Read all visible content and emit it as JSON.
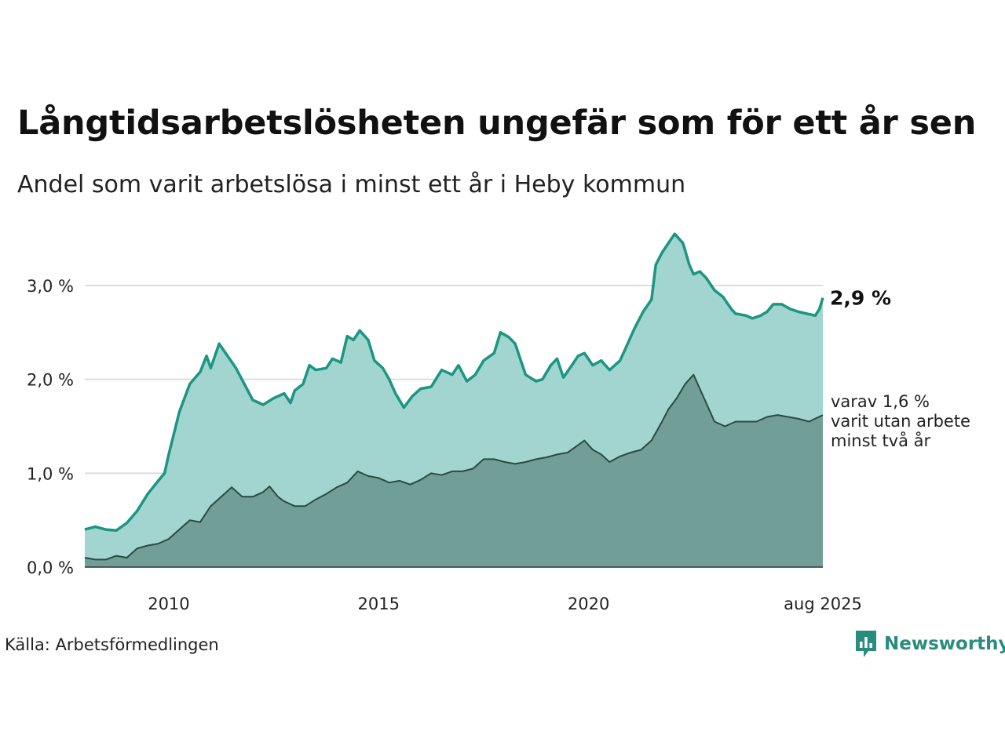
{
  "title": "Långtidsarbetslösheten ungefär som för ett år sen",
  "subtitle": "Andel som varit arbetslösa i minst ett år i Heby kommun",
  "source": "Källa: Arbetsförmedlingen",
  "brand": {
    "name": "Newsworthy",
    "color": "#2a8c7e"
  },
  "chart_data": {
    "type": "area",
    "x_unit": "year",
    "xlim": [
      2008.0,
      2025.58
    ],
    "ylim": [
      0,
      3.0
    ],
    "yticks": [
      {
        "value": 0,
        "label": "0,0 %"
      },
      {
        "value": 1,
        "label": "1,0 %"
      },
      {
        "value": 2,
        "label": "2,0 %"
      },
      {
        "value": 3,
        "label": "3,0 %"
      }
    ],
    "xticks": [
      {
        "value": 2010,
        "label": "2010"
      },
      {
        "value": 2015,
        "label": "2015"
      },
      {
        "value": 2020,
        "label": "2020"
      },
      {
        "value": 2025.58,
        "label": "aug 2025"
      }
    ],
    "grid": true,
    "colors": {
      "total_line": "#1a9682",
      "total_fill": "#a2d5cf",
      "two_year_line": "#2b4a44",
      "two_year_fill": "#719e97",
      "grid": "#dddddd",
      "axis": "#333333"
    },
    "series": [
      {
        "key": "total",
        "end_label": "2,9 %",
        "points": [
          [
            2008.0,
            0.4
          ],
          [
            2008.25,
            0.43
          ],
          [
            2008.5,
            0.4
          ],
          [
            2008.75,
            0.39
          ],
          [
            2009.0,
            0.47
          ],
          [
            2009.25,
            0.6
          ],
          [
            2009.5,
            0.78
          ],
          [
            2009.75,
            0.92
          ],
          [
            2009.9,
            1.0
          ],
          [
            2010.0,
            1.2
          ],
          [
            2010.25,
            1.65
          ],
          [
            2010.5,
            1.95
          ],
          [
            2010.75,
            2.08
          ],
          [
            2010.9,
            2.25
          ],
          [
            2011.0,
            2.12
          ],
          [
            2011.2,
            2.38
          ],
          [
            2011.4,
            2.25
          ],
          [
            2011.6,
            2.12
          ],
          [
            2011.8,
            1.95
          ],
          [
            2012.0,
            1.78
          ],
          [
            2012.25,
            1.73
          ],
          [
            2012.5,
            1.8
          ],
          [
            2012.75,
            1.85
          ],
          [
            2012.9,
            1.75
          ],
          [
            2013.0,
            1.88
          ],
          [
            2013.2,
            1.95
          ],
          [
            2013.35,
            2.15
          ],
          [
            2013.5,
            2.1
          ],
          [
            2013.75,
            2.12
          ],
          [
            2013.9,
            2.22
          ],
          [
            2014.1,
            2.18
          ],
          [
            2014.25,
            2.46
          ],
          [
            2014.4,
            2.42
          ],
          [
            2014.55,
            2.52
          ],
          [
            2014.75,
            2.42
          ],
          [
            2014.9,
            2.2
          ],
          [
            2015.1,
            2.12
          ],
          [
            2015.25,
            2.0
          ],
          [
            2015.4,
            1.85
          ],
          [
            2015.6,
            1.7
          ],
          [
            2015.8,
            1.82
          ],
          [
            2016.0,
            1.9
          ],
          [
            2016.25,
            1.92
          ],
          [
            2016.5,
            2.1
          ],
          [
            2016.75,
            2.05
          ],
          [
            2016.9,
            2.15
          ],
          [
            2017.1,
            1.98
          ],
          [
            2017.3,
            2.05
          ],
          [
            2017.5,
            2.2
          ],
          [
            2017.75,
            2.28
          ],
          [
            2017.9,
            2.5
          ],
          [
            2018.1,
            2.45
          ],
          [
            2018.25,
            2.38
          ],
          [
            2018.5,
            2.05
          ],
          [
            2018.75,
            1.98
          ],
          [
            2018.9,
            2.0
          ],
          [
            2019.1,
            2.15
          ],
          [
            2019.25,
            2.22
          ],
          [
            2019.4,
            2.02
          ],
          [
            2019.6,
            2.15
          ],
          [
            2019.75,
            2.25
          ],
          [
            2019.9,
            2.28
          ],
          [
            2020.1,
            2.15
          ],
          [
            2020.3,
            2.2
          ],
          [
            2020.5,
            2.1
          ],
          [
            2020.75,
            2.2
          ],
          [
            2020.9,
            2.35
          ],
          [
            2021.1,
            2.55
          ],
          [
            2021.3,
            2.72
          ],
          [
            2021.5,
            2.85
          ],
          [
            2021.6,
            3.22
          ],
          [
            2021.75,
            3.35
          ],
          [
            2021.9,
            3.45
          ],
          [
            2022.05,
            3.55
          ],
          [
            2022.25,
            3.45
          ],
          [
            2022.4,
            3.22
          ],
          [
            2022.5,
            3.12
          ],
          [
            2022.65,
            3.15
          ],
          [
            2022.8,
            3.08
          ],
          [
            2023.0,
            2.95
          ],
          [
            2023.2,
            2.88
          ],
          [
            2023.4,
            2.75
          ],
          [
            2023.5,
            2.7
          ],
          [
            2023.75,
            2.68
          ],
          [
            2023.9,
            2.65
          ],
          [
            2024.1,
            2.68
          ],
          [
            2024.25,
            2.72
          ],
          [
            2024.4,
            2.8
          ],
          [
            2024.6,
            2.8
          ],
          [
            2024.8,
            2.75
          ],
          [
            2025.0,
            2.72
          ],
          [
            2025.2,
            2.7
          ],
          [
            2025.4,
            2.68
          ],
          [
            2025.5,
            2.75
          ],
          [
            2025.58,
            2.87
          ]
        ]
      },
      {
        "key": "two_year",
        "end_label_lines": [
          "varav 1,6 %",
          "varit utan arbete",
          "minst två år"
        ],
        "points": [
          [
            2008.0,
            0.1
          ],
          [
            2008.25,
            0.08
          ],
          [
            2008.5,
            0.08
          ],
          [
            2008.75,
            0.12
          ],
          [
            2009.0,
            0.1
          ],
          [
            2009.25,
            0.2
          ],
          [
            2009.5,
            0.23
          ],
          [
            2009.75,
            0.25
          ],
          [
            2010.0,
            0.3
          ],
          [
            2010.25,
            0.4
          ],
          [
            2010.5,
            0.5
          ],
          [
            2010.75,
            0.48
          ],
          [
            2011.0,
            0.65
          ],
          [
            2011.25,
            0.75
          ],
          [
            2011.5,
            0.85
          ],
          [
            2011.75,
            0.75
          ],
          [
            2012.0,
            0.75
          ],
          [
            2012.25,
            0.8
          ],
          [
            2012.4,
            0.86
          ],
          [
            2012.6,
            0.75
          ],
          [
            2012.75,
            0.7
          ],
          [
            2013.0,
            0.65
          ],
          [
            2013.25,
            0.65
          ],
          [
            2013.5,
            0.72
          ],
          [
            2013.75,
            0.78
          ],
          [
            2014.0,
            0.85
          ],
          [
            2014.25,
            0.9
          ],
          [
            2014.5,
            1.02
          ],
          [
            2014.75,
            0.97
          ],
          [
            2015.0,
            0.95
          ],
          [
            2015.25,
            0.9
          ],
          [
            2015.5,
            0.92
          ],
          [
            2015.75,
            0.88
          ],
          [
            2016.0,
            0.93
          ],
          [
            2016.25,
            1.0
          ],
          [
            2016.5,
            0.98
          ],
          [
            2016.75,
            1.02
          ],
          [
            2017.0,
            1.02
          ],
          [
            2017.25,
            1.05
          ],
          [
            2017.5,
            1.15
          ],
          [
            2017.75,
            1.15
          ],
          [
            2018.0,
            1.12
          ],
          [
            2018.25,
            1.1
          ],
          [
            2018.5,
            1.12
          ],
          [
            2018.75,
            1.15
          ],
          [
            2019.0,
            1.17
          ],
          [
            2019.25,
            1.2
          ],
          [
            2019.5,
            1.22
          ],
          [
            2019.75,
            1.3
          ],
          [
            2019.9,
            1.35
          ],
          [
            2020.1,
            1.25
          ],
          [
            2020.3,
            1.2
          ],
          [
            2020.5,
            1.12
          ],
          [
            2020.75,
            1.18
          ],
          [
            2021.0,
            1.22
          ],
          [
            2021.25,
            1.25
          ],
          [
            2021.5,
            1.35
          ],
          [
            2021.75,
            1.55
          ],
          [
            2021.9,
            1.68
          ],
          [
            2022.1,
            1.8
          ],
          [
            2022.3,
            1.95
          ],
          [
            2022.5,
            2.05
          ],
          [
            2022.75,
            1.8
          ],
          [
            2023.0,
            1.55
          ],
          [
            2023.25,
            1.5
          ],
          [
            2023.5,
            1.55
          ],
          [
            2023.75,
            1.55
          ],
          [
            2024.0,
            1.55
          ],
          [
            2024.25,
            1.6
          ],
          [
            2024.5,
            1.62
          ],
          [
            2024.75,
            1.6
          ],
          [
            2025.0,
            1.58
          ],
          [
            2025.25,
            1.55
          ],
          [
            2025.58,
            1.62
          ]
        ]
      }
    ]
  }
}
